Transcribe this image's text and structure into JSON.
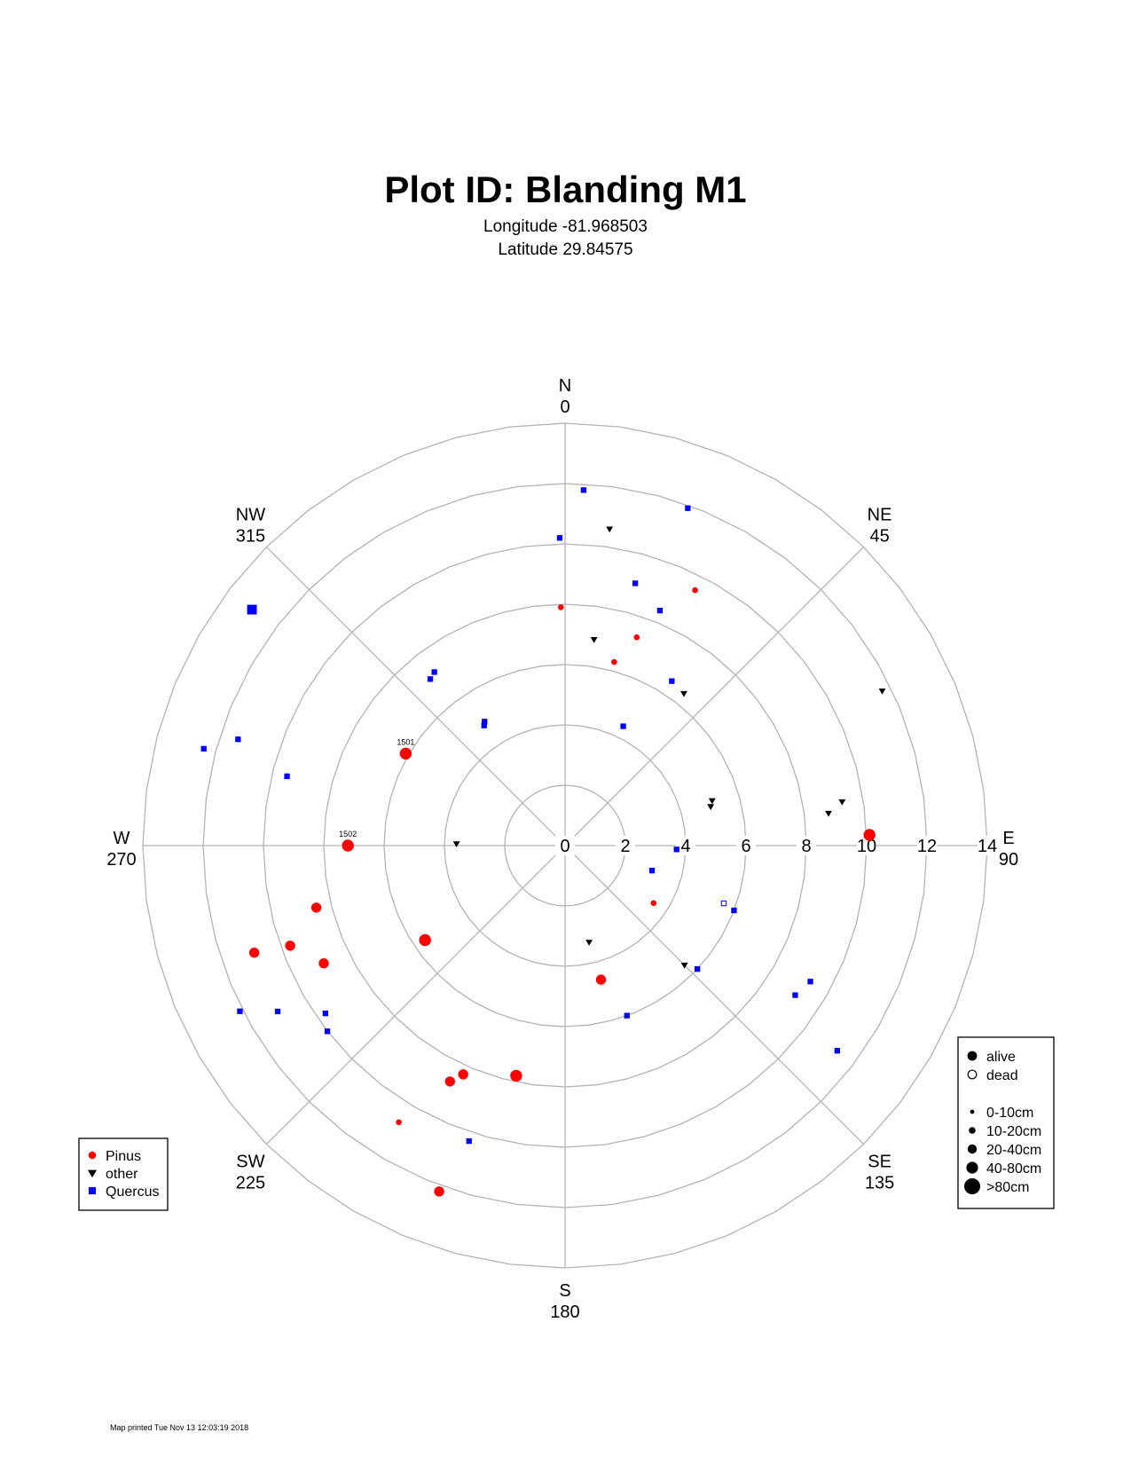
{
  "title": "Plot ID:  Blanding M1",
  "subtitle_longitude": "Longitude -81.968503",
  "subtitle_latitude": "Latitude 29.84575",
  "footer": "Map printed Tue Nov 13 12:03:19 2018",
  "colors": {
    "Pinus": "#ff0000",
    "other": "#000000",
    "Quercus": "#0000ff",
    "grid": "#b3b3b3"
  },
  "chart_data": {
    "type": "scatter",
    "coordinate_system": "polar",
    "angle_units": "degrees from north, clockwise",
    "radius_range": [
      0,
      14
    ],
    "radius_ticks": [
      "0",
      "2",
      "4",
      "6",
      "8",
      "10",
      "12",
      "14"
    ],
    "rings": [
      2,
      4,
      6,
      8,
      10,
      12,
      14
    ],
    "direction_labels": [
      {
        "name": "N",
        "deg": "0",
        "angle": 0
      },
      {
        "name": "NE",
        "deg": "45",
        "angle": 45
      },
      {
        "name": "E",
        "deg": "90",
        "angle": 90
      },
      {
        "name": "SE",
        "deg": "135",
        "angle": 135
      },
      {
        "name": "S",
        "deg": "180",
        "angle": 180
      },
      {
        "name": "SW",
        "deg": "225",
        "angle": 225
      },
      {
        "name": "W",
        "deg": "270",
        "angle": 270
      },
      {
        "name": "NW",
        "deg": "315",
        "angle": 315
      }
    ],
    "species_legend": [
      {
        "name": "Pinus",
        "symbol": "circle"
      },
      {
        "name": "other",
        "symbol": "triangle-down"
      },
      {
        "name": "Quercus",
        "symbol": "square"
      }
    ],
    "status_legend": [
      {
        "name": "alive",
        "filled": true
      },
      {
        "name": "dead",
        "filled": false
      }
    ],
    "size_legend": [
      {
        "name": "0-10cm",
        "size": 1
      },
      {
        "name": "10-20cm",
        "size": 2
      },
      {
        "name": "20-40cm",
        "size": 3
      },
      {
        "name": "40-80cm",
        "size": 4
      },
      {
        "name": ">80cm",
        "size": 5
      }
    ],
    "points": [
      {
        "species": "Quercus",
        "angle": 3,
        "dist": 11.8,
        "size": 1,
        "status": "alive"
      },
      {
        "species": "Quercus",
        "angle": 359,
        "dist": 10.2,
        "size": 1,
        "status": "alive"
      },
      {
        "species": "other",
        "angle": 8,
        "dist": 10.6,
        "size": 1,
        "status": "alive"
      },
      {
        "species": "Quercus",
        "angle": 20,
        "dist": 11.9,
        "size": 1,
        "status": "alive"
      },
      {
        "species": "Quercus",
        "angle": 15,
        "dist": 9.0,
        "size": 1,
        "status": "alive"
      },
      {
        "species": "Quercus",
        "angle": 22,
        "dist": 8.4,
        "size": 1,
        "status": "alive"
      },
      {
        "species": "Pinus",
        "angle": 27,
        "dist": 9.5,
        "size": 1,
        "status": "alive"
      },
      {
        "species": "Pinus",
        "angle": 359,
        "dist": 7.9,
        "size": 1,
        "status": "alive"
      },
      {
        "species": "other",
        "angle": 8,
        "dist": 6.9,
        "size": 1,
        "status": "alive"
      },
      {
        "species": "Pinus",
        "angle": 19,
        "dist": 7.3,
        "size": 1,
        "status": "alive"
      },
      {
        "species": "Pinus",
        "angle": 15,
        "dist": 6.3,
        "size": 1,
        "status": "alive"
      },
      {
        "species": "Quercus",
        "angle": 33,
        "dist": 6.5,
        "size": 1,
        "status": "alive"
      },
      {
        "species": "other",
        "angle": 38,
        "dist": 6.4,
        "size": 1,
        "status": "alive"
      },
      {
        "species": "Quercus",
        "angle": 26,
        "dist": 4.4,
        "size": 1,
        "status": "alive"
      },
      {
        "species": "other",
        "angle": 64,
        "dist": 11.7,
        "size": 1,
        "status": "alive"
      },
      {
        "species": "other",
        "angle": 75,
        "dist": 5.0,
        "size": 1,
        "status": "alive"
      },
      {
        "species": "other",
        "angle": 73,
        "dist": 5.1,
        "size": 1,
        "status": "alive"
      },
      {
        "species": "other",
        "angle": 83,
        "dist": 8.8,
        "size": 1,
        "status": "alive"
      },
      {
        "species": "other",
        "angle": 81,
        "dist": 9.3,
        "size": 1,
        "status": "alive"
      },
      {
        "species": "Pinus",
        "angle": 88,
        "dist": 10.1,
        "size": 4,
        "status": "alive"
      },
      {
        "species": "Quercus",
        "angle": 106,
        "dist": 3.0,
        "size": 1,
        "status": "alive"
      },
      {
        "species": "Quercus",
        "angle": 92,
        "dist": 3.7,
        "size": 1,
        "status": "alive"
      },
      {
        "species": "Pinus",
        "angle": 123,
        "dist": 3.5,
        "size": 1,
        "status": "alive"
      },
      {
        "species": "Quercus",
        "angle": 110,
        "dist": 5.6,
        "size": 1,
        "status": "dead"
      },
      {
        "species": "Quercus",
        "angle": 111,
        "dist": 6.0,
        "size": 1,
        "status": "alive"
      },
      {
        "species": "other",
        "angle": 166,
        "dist": 3.3,
        "size": 1,
        "status": "alive"
      },
      {
        "species": "other",
        "angle": 135,
        "dist": 5.6,
        "size": 1,
        "status": "alive"
      },
      {
        "species": "Quercus",
        "angle": 133,
        "dist": 6.0,
        "size": 1,
        "status": "alive"
      },
      {
        "species": "Quercus",
        "angle": 123,
        "dist": 9.1,
        "size": 1,
        "status": "alive"
      },
      {
        "species": "Quercus",
        "angle": 119,
        "dist": 9.3,
        "size": 1,
        "status": "alive"
      },
      {
        "species": "Quercus",
        "angle": 127,
        "dist": 11.3,
        "size": 1,
        "status": "alive"
      },
      {
        "species": "Pinus",
        "angle": 165,
        "dist": 4.6,
        "size": 3,
        "status": "alive"
      },
      {
        "species": "Quercus",
        "angle": 160,
        "dist": 6.0,
        "size": 1,
        "status": "alive"
      },
      {
        "species": "Pinus",
        "angle": 192,
        "dist": 7.8,
        "size": 4,
        "status": "alive"
      },
      {
        "species": "Pinus",
        "angle": 204,
        "dist": 8.3,
        "size": 3,
        "status": "alive"
      },
      {
        "species": "Pinus",
        "angle": 206,
        "dist": 8.7,
        "size": 3,
        "status": "alive"
      },
      {
        "species": "Pinus",
        "angle": 211,
        "dist": 10.7,
        "size": 1,
        "status": "alive"
      },
      {
        "species": "Quercus",
        "angle": 198,
        "dist": 10.3,
        "size": 1,
        "status": "alive"
      },
      {
        "species": "Pinus",
        "angle": 200,
        "dist": 12.2,
        "size": 3,
        "status": "alive"
      },
      {
        "species": "Quercus",
        "angle": 232,
        "dist": 10.0,
        "size": 1,
        "status": "alive"
      },
      {
        "species": "Quercus",
        "angle": 235,
        "dist": 9.7,
        "size": 1,
        "status": "alive"
      },
      {
        "species": "Quercus",
        "angle": 240,
        "dist": 11.0,
        "size": 1,
        "status": "alive"
      },
      {
        "species": "Quercus",
        "angle": 243,
        "dist": 12.1,
        "size": 1,
        "status": "alive"
      },
      {
        "species": "Pinus",
        "angle": 236,
        "dist": 5.6,
        "size": 4,
        "status": "alive"
      },
      {
        "species": "Pinus",
        "angle": 244,
        "dist": 8.9,
        "size": 3,
        "status": "alive"
      },
      {
        "species": "Pinus",
        "angle": 250,
        "dist": 9.7,
        "size": 3,
        "status": "alive"
      },
      {
        "species": "Pinus",
        "angle": 256,
        "dist": 8.5,
        "size": 3,
        "status": "alive"
      },
      {
        "species": "Pinus",
        "angle": 251,
        "dist": 10.9,
        "size": 3,
        "status": "alive"
      },
      {
        "species": "other",
        "angle": 271,
        "dist": 3.6,
        "size": 1,
        "status": "alive"
      },
      {
        "species": "Pinus",
        "angle": 270,
        "dist": 7.2,
        "size": 4,
        "status": "alive",
        "label": "1502"
      },
      {
        "species": "Pinus",
        "angle": 300,
        "dist": 6.1,
        "size": 4,
        "status": "alive",
        "label": "1501"
      },
      {
        "species": "Quercus",
        "angle": 284,
        "dist": 9.5,
        "size": 1,
        "status": "alive"
      },
      {
        "species": "Quercus",
        "angle": 288,
        "dist": 11.4,
        "size": 1,
        "status": "alive"
      },
      {
        "species": "Quercus",
        "angle": 285,
        "dist": 12.4,
        "size": 1,
        "status": "alive"
      },
      {
        "species": "Quercus",
        "angle": 307,
        "dist": 13.0,
        "size": 3,
        "status": "alive"
      },
      {
        "species": "Quercus",
        "angle": 323,
        "dist": 7.2,
        "size": 1,
        "status": "alive"
      },
      {
        "species": "Quercus",
        "angle": 321,
        "dist": 7.1,
        "size": 1,
        "status": "alive"
      },
      {
        "species": "Quercus",
        "angle": 326,
        "dist": 4.8,
        "size": 1,
        "status": "alive"
      },
      {
        "species": "Quercus",
        "angle": 327,
        "dist": 4.9,
        "size": 1,
        "status": "alive"
      }
    ]
  }
}
